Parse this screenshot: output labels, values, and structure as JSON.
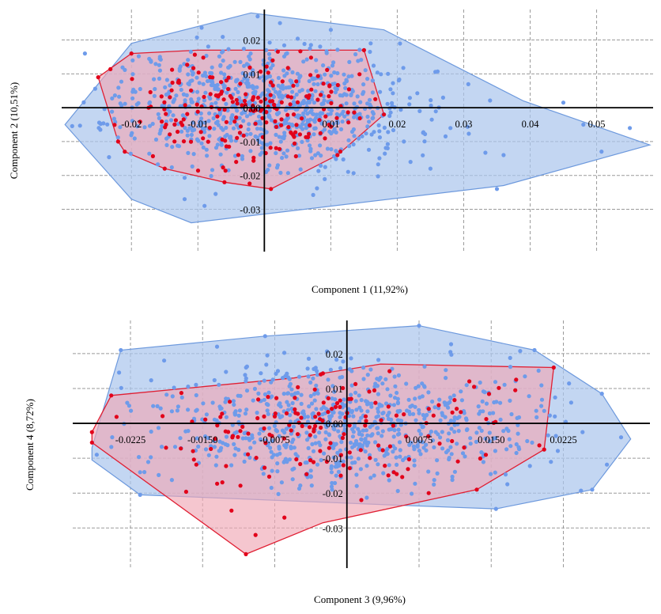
{
  "colors": {
    "all_fill": "#a9c4ec",
    "all_stroke": "#6d99dd",
    "all_point": "#6e9bea",
    "red_fill": "#f0a8b6",
    "red_stroke": "#e01f33",
    "red_point": "#e2001a",
    "axis": "#000000",
    "grid": "#9a9a9a"
  },
  "chart_data": [
    {
      "type": "scatter",
      "title": "",
      "xlabel": "Component 1 (11,92%)",
      "ylabel": "Component 2 (10,51%)",
      "xlim": [
        -0.0305,
        0.0585
      ],
      "ylim": [
        -0.0425,
        0.029
      ],
      "x_ticks": [
        -0.02,
        -0.01,
        0.0,
        0.01,
        0.02,
        0.03,
        0.04,
        0.05
      ],
      "x_tick_labels": [
        "-0.02",
        "-0.01",
        "0.00",
        "0.01",
        "0.02",
        "0.03",
        "0.04",
        "0.05"
      ],
      "y_ticks": [
        -0.03,
        -0.02,
        -0.01,
        0.0,
        0.01,
        0.02
      ],
      "y_tick_labels": [
        "-0.03",
        "-0.02",
        "-0.01",
        "0.00",
        "0.01",
        "0.02"
      ],
      "grid": true,
      "hull_all": [
        [
          -0.03,
          -0.005
        ],
        [
          -0.02,
          0.019
        ],
        [
          -0.002,
          0.028
        ],
        [
          0.018,
          0.023
        ],
        [
          0.039,
          0.002
        ],
        [
          0.058,
          -0.011
        ],
        [
          0.036,
          -0.023
        ],
        [
          -0.011,
          -0.034
        ],
        [
          -0.02,
          -0.027
        ]
      ],
      "hull_red": [
        [
          -0.025,
          0.009
        ],
        [
          -0.02,
          0.016
        ],
        [
          -0.01,
          0.017
        ],
        [
          0.015,
          0.017
        ],
        [
          0.018,
          -0.002
        ],
        [
          0.011,
          -0.014
        ],
        [
          0.001,
          -0.024
        ],
        [
          -0.006,
          -0.022
        ],
        [
          -0.015,
          -0.018
        ],
        [
          -0.021,
          -0.013
        ],
        [
          -0.022,
          -0.01
        ]
      ],
      "series": [
        {
          "role": "all",
          "n": 850,
          "cx": 0.0,
          "cy": 0.001,
          "sx": 0.011,
          "sy": 0.0088,
          "seed": 11,
          "extra": [
            [
              0.035,
              -0.024
            ],
            [
              0.048,
              -0.005
            ],
            [
              0.045,
              0.0015
            ],
            [
              0.055,
              -0.006
            ],
            [
              0.022,
              -0.016
            ],
            [
              0.025,
              -0.018
            ],
            [
              0.021,
              -0.01
            ],
            [
              -0.012,
              -0.027
            ],
            [
              -0.009,
              -0.029
            ],
            [
              -0.001,
              0.027
            ],
            [
              0.01,
              0.023
            ],
            [
              0.016,
              0.019
            ],
            [
              0.036,
              -0.014
            ],
            [
              -0.027,
              0.016
            ],
            [
              0.028,
              -0.006
            ]
          ]
        },
        {
          "role": "red",
          "n": 195,
          "cx": -0.003,
          "cy": -0.001,
          "sx": 0.0095,
          "sy": 0.0085,
          "seed": 23,
          "extra": [
            [
              -0.025,
              0.009
            ],
            [
              -0.02,
              0.016
            ],
            [
              0.015,
              0.017
            ],
            [
              0.018,
              -0.002
            ],
            [
              0.011,
              -0.014
            ],
            [
              0.001,
              -0.024
            ],
            [
              -0.006,
              -0.022
            ],
            [
              -0.015,
              -0.018
            ],
            [
              -0.021,
              -0.013
            ],
            [
              -0.022,
              -0.01
            ]
          ]
        }
      ]
    },
    {
      "type": "scatter",
      "title": "",
      "xlabel": "Component 3 (9,96%)",
      "ylabel": "Component 4 (8,72%)",
      "xlim": [
        -0.0285,
        0.0315
      ],
      "ylim": [
        -0.0415,
        0.0295
      ],
      "x_ticks": [
        -0.0225,
        -0.015,
        -0.0075,
        0.0,
        0.0075,
        0.015,
        0.0225
      ],
      "x_tick_labels": [
        "-0.0225",
        "-0.0150",
        "-0.0075",
        "0.0000",
        "0.0075",
        "0.0150",
        "0.0225"
      ],
      "y_ticks": [
        -0.03,
        -0.02,
        -0.01,
        0.0,
        0.01,
        0.02
      ],
      "y_tick_labels": [
        "-0.03",
        "-0.02",
        "-0.01",
        "0.00",
        "0.01",
        "0.02"
      ],
      "grid": true,
      "hull_all": [
        [
          -0.0265,
          -0.007
        ],
        [
          -0.0235,
          0.021
        ],
        [
          -0.0085,
          0.025
        ],
        [
          0.0075,
          0.028
        ],
        [
          0.0195,
          0.021
        ],
        [
          0.0265,
          0.0085
        ],
        [
          0.0295,
          -0.0045
        ],
        [
          0.0255,
          -0.019
        ],
        [
          0.0155,
          -0.0245
        ],
        [
          0.0055,
          -0.0235
        ],
        [
          -0.0215,
          -0.0205
        ],
        [
          -0.0265,
          -0.0105
        ]
      ],
      "hull_red": [
        [
          -0.0265,
          -0.0025
        ],
        [
          -0.0245,
          0.008
        ],
        [
          -0.0055,
          0.013
        ],
        [
          0.0035,
          0.017
        ],
        [
          0.0215,
          0.016
        ],
        [
          0.0205,
          -0.0075
        ],
        [
          0.0135,
          -0.019
        ],
        [
          -0.0025,
          -0.0285
        ],
        [
          -0.0105,
          -0.0375
        ],
        [
          -0.0265,
          -0.0055
        ]
      ],
      "series": [
        {
          "role": "all",
          "n": 800,
          "cx": 0.0,
          "cy": 0.0,
          "sx": 0.0095,
          "sy": 0.0085,
          "seed": 37,
          "extra": [
            [
              -0.0235,
              0.021
            ],
            [
              -0.0085,
              0.025
            ],
            [
              0.0075,
              0.028
            ],
            [
              0.0265,
              0.0085
            ],
            [
              0.0285,
              -0.004
            ],
            [
              0.0255,
              -0.019
            ],
            [
              0.0155,
              -0.0245
            ],
            [
              -0.0215,
              -0.0205
            ],
            [
              -0.026,
              -0.009
            ],
            [
              0.0245,
              -0.0025
            ],
            [
              0.0195,
              0.021
            ],
            [
              -0.019,
              0.018
            ],
            [
              -0.0215,
              -0.014
            ],
            [
              -0.0135,
              0.022
            ]
          ]
        },
        {
          "role": "red",
          "n": 150,
          "cx": -0.001,
          "cy": -0.0015,
          "sx": 0.0098,
          "sy": 0.0088,
          "seed": 41,
          "extra": [
            [
              -0.0265,
              -0.0025
            ],
            [
              -0.0245,
              0.008
            ],
            [
              0.0215,
              0.016
            ],
            [
              0.0205,
              -0.0075
            ],
            [
              0.0135,
              -0.019
            ],
            [
              -0.0105,
              -0.0375
            ],
            [
              -0.0265,
              -0.0055
            ],
            [
              -0.0095,
              -0.032
            ],
            [
              -0.0065,
              -0.027
            ],
            [
              0.0015,
              -0.022
            ],
            [
              0.0085,
              -0.02
            ],
            [
              0.0175,
              0.0095
            ],
            [
              -0.012,
              -0.025
            ]
          ]
        }
      ]
    }
  ]
}
